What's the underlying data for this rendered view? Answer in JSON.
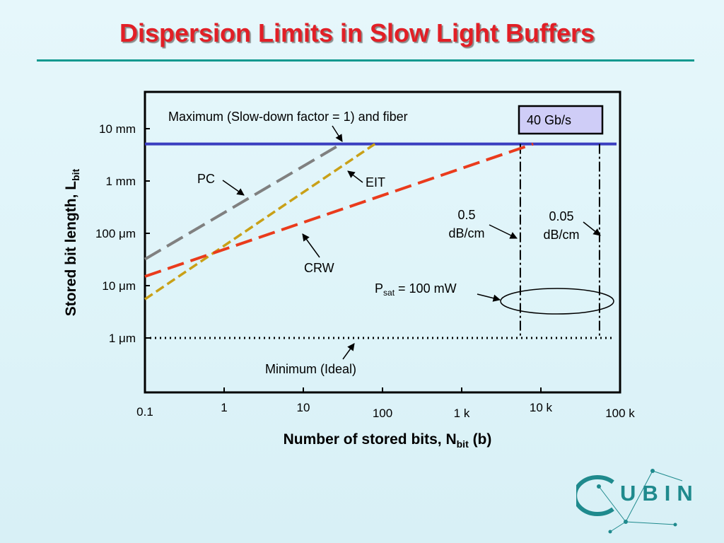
{
  "slide": {
    "title": "Dispersion Limits in Slow Light Buffers"
  },
  "colors": {
    "title": "#e21f26",
    "rule": "#10998f",
    "max_line": "#3a3ec0",
    "pc": "#808080",
    "eit": "#c9a017",
    "crw": "#ea3b1c",
    "rate_box_fill": "#cfcdf7",
    "logo": "#1f8a8d"
  },
  "chart_data": {
    "type": "line",
    "xscale": "log",
    "yscale": "log",
    "xlim": [
      0.1,
      100000
    ],
    "xlabel_main": "Number of stored bits, N",
    "xlabel_sub": "bit",
    "xlabel_tail": " (b)",
    "ylabel_main": "Stored bit length, L",
    "ylabel_sub": "bit",
    "xticks": [
      {
        "value": 0.1,
        "label": "0.1"
      },
      {
        "value": 1,
        "label": "1"
      },
      {
        "value": 10,
        "label": "10"
      },
      {
        "value": 100,
        "label": "100"
      },
      {
        "value": 1000,
        "label": "1 k"
      },
      {
        "value": 10000,
        "label": "10 k"
      },
      {
        "value": 100000,
        "label": "100 k"
      }
    ],
    "yticks": [
      {
        "value": 1e-06,
        "label": "1 μm"
      },
      {
        "value": 1e-05,
        "label": "10 μm"
      },
      {
        "value": 0.0001,
        "label": "100 μm"
      },
      {
        "value": 0.001,
        "label": "1 mm"
      },
      {
        "value": 0.01,
        "label": "10 mm"
      }
    ],
    "series": [
      {
        "name": "PC",
        "style": "dashed",
        "points": [
          [
            0.1,
            3.2e-05
          ],
          [
            30,
            0.0051
          ]
        ]
      },
      {
        "name": "EIT",
        "style": "dashed",
        "points": [
          [
            0.1,
            5.5e-06
          ],
          [
            80,
            0.0051
          ]
        ]
      },
      {
        "name": "CRW",
        "style": "dashed",
        "points": [
          [
            0.1,
            1.5e-05
          ],
          [
            8000,
            0.0051
          ]
        ]
      }
    ],
    "reference_lines": {
      "maximum": {
        "y": 0.0051
      },
      "minimum": {
        "y": 1e-06
      },
      "loss_limits": [
        {
          "label_line1": "0.5",
          "label_line2": "dB/cm",
          "x": 5500
        },
        {
          "label_line1": "0.05",
          "label_line2": "dB/cm",
          "x": 55000
        }
      ]
    },
    "annotations": {
      "maximum": "Maximum (Slow-down factor = 1) and fiber",
      "minimum": "Minimum (Ideal)",
      "pc": "PC",
      "eit": "EIT",
      "crw": "CRW",
      "psat_main": "P",
      "psat_sub": "sat",
      "psat_tail": " = 100 mW",
      "rate": "40 Gb/s"
    }
  },
  "logo": {
    "text": "UBIN"
  }
}
